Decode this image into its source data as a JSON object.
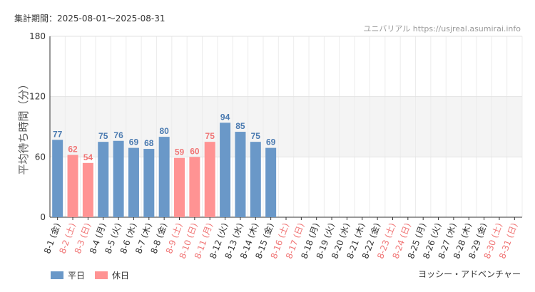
{
  "header": {
    "period": "集計期間：2025-08-01～2025-08-31",
    "source": "ユニバリアル https://usjreal.asumirai.info"
  },
  "attraction": "ヨッシー・アドベンチャー",
  "colors": {
    "weekday": "#6a98c8",
    "holiday": "#ff9393",
    "weekday_label": "#4a7ab0",
    "holiday_label": "#f07575"
  },
  "legend": [
    {
      "label": "平日",
      "color": "#6a98c8"
    },
    {
      "label": "休日",
      "color": "#ff9393"
    }
  ],
  "chart_data": {
    "type": "bar",
    "ylabel": "平均待ち時間（分）",
    "ylim": [
      0,
      180
    ],
    "yticks": [
      "0",
      "60",
      "120",
      "180"
    ],
    "shaded_bands": [
      [
        60,
        120
      ]
    ],
    "grid": true,
    "categories": [
      "8-1 (金)",
      "8-2 (土)",
      "8-3 (日)",
      "8-4 (月)",
      "8-5 (火)",
      "8-6 (水)",
      "8-7 (木)",
      "8-8 (金)",
      "8-9 (土)",
      "8-10 (日)",
      "8-11 (月)",
      "8-12 (火)",
      "8-13 (水)",
      "8-14 (木)",
      "8-15 (金)",
      "8-16 (土)",
      "8-17 (日)",
      "8-18 (月)",
      "8-19 (火)",
      "8-20 (水)",
      "8-21 (木)",
      "8-22 (金)",
      "8-23 (土)",
      "8-24 (日)",
      "8-25 (月)",
      "8-26 (火)",
      "8-27 (水)",
      "8-28 (木)",
      "8-29 (金)",
      "8-30 (土)",
      "8-31 (日)"
    ],
    "day_type": [
      "平日",
      "休日",
      "休日",
      "平日",
      "平日",
      "平日",
      "平日",
      "平日",
      "休日",
      "休日",
      "休日",
      "平日",
      "平日",
      "平日",
      "平日",
      "休日",
      "休日",
      "平日",
      "平日",
      "平日",
      "平日",
      "平日",
      "休日",
      "休日",
      "平日",
      "平日",
      "平日",
      "平日",
      "平日",
      "休日",
      "休日"
    ],
    "values": [
      77,
      62,
      54,
      75,
      76,
      69,
      68,
      80,
      59,
      60,
      75,
      94,
      85,
      75,
      69,
      null,
      null,
      null,
      null,
      null,
      null,
      null,
      null,
      null,
      null,
      null,
      null,
      null,
      null,
      null,
      null
    ]
  }
}
